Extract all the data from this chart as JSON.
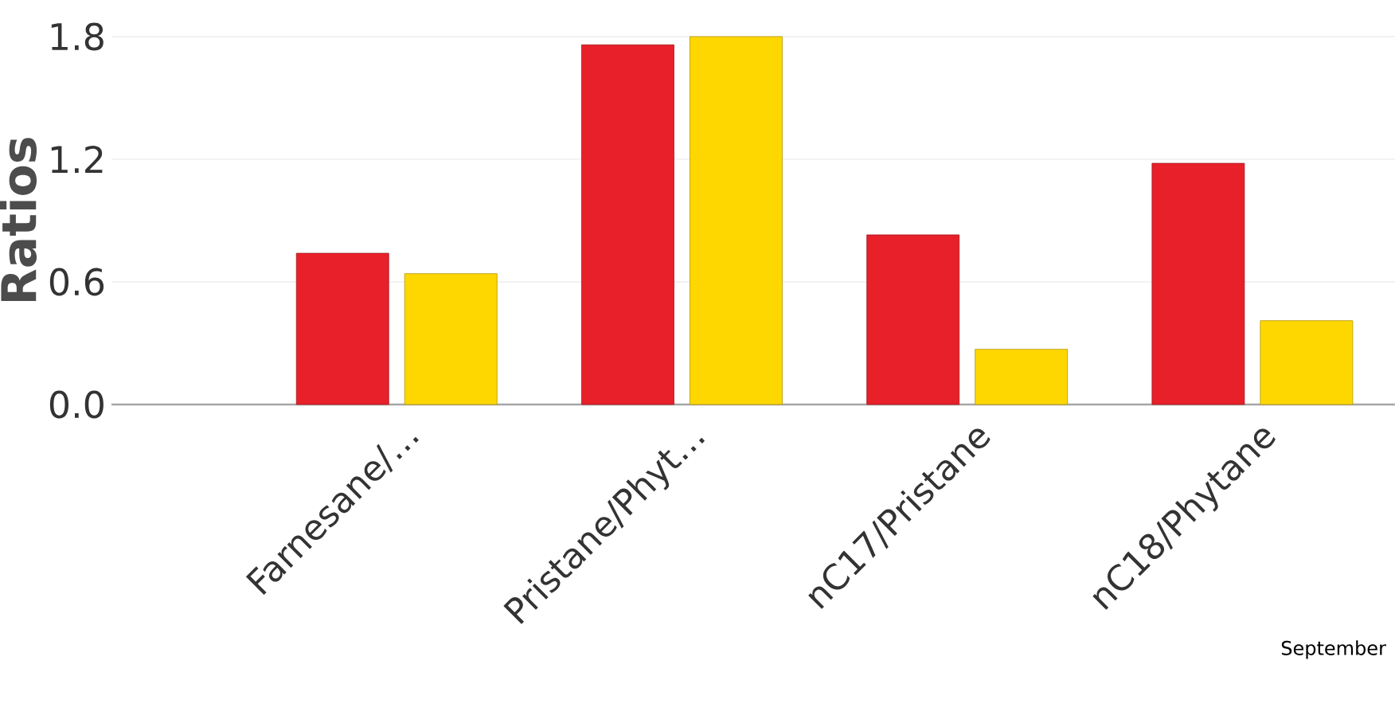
{
  "chart_data": {
    "type": "bar",
    "ylabel": "Ratios",
    "categories": [
      "Farnesane/…",
      "Pristane/Phyt…",
      "nC17/Pristane",
      "nC18/Phytane"
    ],
    "series": [
      {
        "color": "#e8202a",
        "values": [
          0.74,
          1.76,
          0.83,
          1.18
        ]
      },
      {
        "color": "#ffd700",
        "values": [
          0.64,
          1.8,
          0.27,
          0.41
        ]
      }
    ],
    "ylim": [
      0,
      1.8
    ],
    "yticks": [
      {
        "value": 0,
        "label": "0.0"
      },
      0.6,
      1.2,
      1.8
    ],
    "grid": "y",
    "annotations": [
      "September"
    ]
  }
}
